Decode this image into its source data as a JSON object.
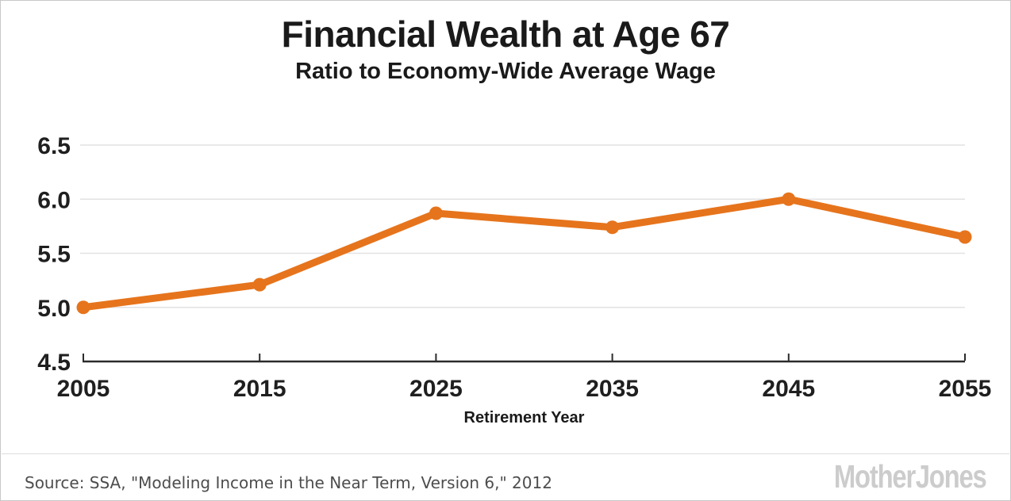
{
  "chart_data": {
    "type": "line",
    "title": "Financial Wealth at Age 67",
    "subtitle": "Ratio to Economy-Wide Average Wage",
    "xlabel": "Retirement Year",
    "ylabel": "",
    "categories": [
      "2005",
      "2015",
      "2025",
      "2035",
      "2045",
      "2055"
    ],
    "values": [
      5.0,
      5.21,
      5.87,
      5.74,
      6.0,
      5.65
    ],
    "series_name": "Financial wealth at age 67 as ratio to economy-wide average wage",
    "ylim": [
      4.5,
      6.5
    ],
    "yticks": [
      "4.5",
      "5.0",
      "5.5",
      "6.0",
      "6.5"
    ],
    "grid": "horizontal-only",
    "legend": "none",
    "marker": "circle"
  },
  "footer": {
    "source": "Source: SSA, \"Modeling Income in the Near Term, Version 6,\" 2012",
    "logo": "Mother Jones"
  },
  "colors": {
    "line": "#E6741C",
    "grid": "#E2E2E2",
    "axis": "#2B2B2B",
    "title_text": "#1A1A1A",
    "source_text": "#4D4D4D",
    "logo_text": "#CCCCCC",
    "border": "#C8C8C8",
    "background": "#FFFFFF"
  }
}
